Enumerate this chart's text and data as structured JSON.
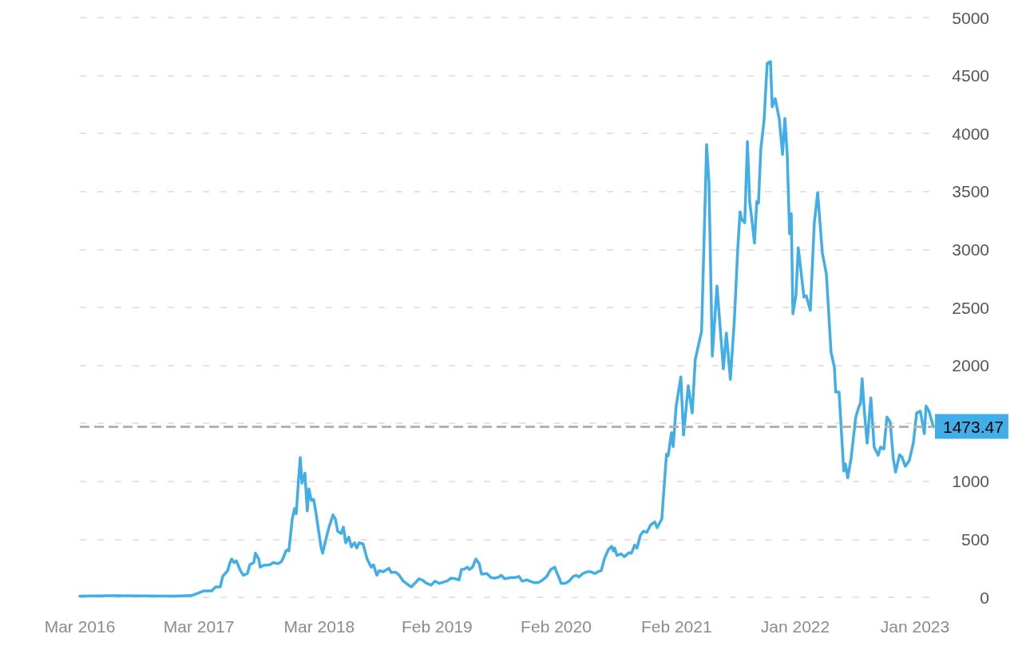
{
  "chart_data": {
    "type": "line",
    "x": [
      "2016-03-15",
      "2016-06-18",
      "2016-09-22",
      "2016-12-26",
      "2017-02-12",
      "2017-03-03",
      "2017-03-20",
      "2017-04-13",
      "2017-04-25",
      "2017-05-09",
      "2017-05-16",
      "2017-05-31",
      "2017-06-07",
      "2017-06-12",
      "2017-06-19",
      "2017-06-26",
      "2017-07-08",
      "2017-07-17",
      "2017-07-29",
      "2017-08-05",
      "2017-08-17",
      "2017-08-22",
      "2017-09-01",
      "2017-09-05",
      "2017-09-15",
      "2017-10-04",
      "2017-10-14",
      "2017-10-28",
      "2017-11-07",
      "2017-11-14",
      "2017-11-21",
      "2017-11-26",
      "2017-11-30",
      "2017-12-10",
      "2017-12-17",
      "2017-12-22",
      "2017-12-29",
      "2018-01-03",
      "2018-01-08",
      "2018-01-17",
      "2018-01-24",
      "2018-01-29",
      "2018-02-05",
      "2018-02-12",
      "2018-02-20",
      "2018-02-27",
      "2018-03-06",
      "2018-03-11",
      "2018-03-18",
      "2018-03-30",
      "2018-04-11",
      "2018-04-18",
      "2018-04-25",
      "2018-05-05",
      "2018-05-12",
      "2018-05-19",
      "2018-05-28",
      "2018-06-05",
      "2018-06-14",
      "2018-06-21",
      "2018-06-28",
      "2018-07-10",
      "2018-07-22",
      "2018-08-03",
      "2018-08-10",
      "2018-08-20",
      "2018-08-27",
      "2018-09-08",
      "2018-09-25",
      "2018-10-02",
      "2018-10-16",
      "2018-10-26",
      "2018-11-07",
      "2018-11-23",
      "2018-12-01",
      "2018-12-13",
      "2018-12-24",
      "2019-01-05",
      "2019-01-13",
      "2019-01-29",
      "2019-02-10",
      "2019-02-22",
      "2019-03-06",
      "2019-03-18",
      "2019-03-30",
      "2019-04-11",
      "2019-04-23",
      "2019-04-30",
      "2019-05-10",
      "2019-05-17",
      "2019-05-24",
      "2019-06-02",
      "2019-06-12",
      "2019-06-22",
      "2019-06-29",
      "2019-07-15",
      "2019-07-27",
      "2019-08-08",
      "2019-08-20",
      "2019-08-27",
      "2019-09-06",
      "2019-09-25",
      "2019-10-07",
      "2019-10-19",
      "2019-10-28",
      "2019-11-12",
      "2019-11-24",
      "2019-12-06",
      "2019-12-18",
      "2019-12-29",
      "2020-01-10",
      "2020-01-22",
      "2020-02-03",
      "2020-02-10",
      "2020-02-15",
      "2020-02-22",
      "2020-03-05",
      "2020-03-17",
      "2020-03-29",
      "2020-04-08",
      "2020-04-15",
      "2020-04-27",
      "2020-05-09",
      "2020-05-21",
      "2020-06-02",
      "2020-06-14",
      "2020-06-21",
      "2020-06-30",
      "2020-07-12",
      "2020-07-22",
      "2020-07-27",
      "2020-07-31",
      "2020-08-07",
      "2020-08-19",
      "2020-08-29",
      "2020-09-12",
      "2020-09-19",
      "2020-09-29",
      "2020-10-06",
      "2020-10-16",
      "2020-10-25",
      "2020-11-04",
      "2020-11-16",
      "2020-11-28",
      "2020-12-05",
      "2020-12-19",
      "2021-01-02",
      "2021-01-07",
      "2021-01-17",
      "2021-01-22",
      "2021-01-31",
      "2021-02-14",
      "2021-02-22",
      "2021-03-08",
      "2021-03-20",
      "2021-03-29",
      "2021-04-17",
      "2021-05-02",
      "2021-05-09",
      "2021-05-19",
      "2021-06-02",
      "2021-06-21",
      "2021-06-30",
      "2021-07-12",
      "2021-07-24",
      "2021-08-03",
      "2021-08-10",
      "2021-08-15",
      "2021-08-24",
      "2021-09-01",
      "2021-09-08",
      "2021-09-12",
      "2021-09-22",
      "2021-09-29",
      "2021-10-04",
      "2021-10-11",
      "2021-10-21",
      "2021-10-30",
      "2021-11-09",
      "2021-11-14",
      "2021-11-23",
      "2021-12-05",
      "2021-12-15",
      "2021-12-22",
      "2021-12-29",
      "2022-01-05",
      "2022-01-10",
      "2022-01-15",
      "2022-01-24",
      "2022-01-31",
      "2022-02-17",
      "2022-02-24",
      "2022-03-08",
      "2022-03-20",
      "2022-03-30",
      "2022-04-13",
      "2022-04-25",
      "2022-05-09",
      "2022-05-19",
      "2022-05-23",
      "2022-06-02",
      "2022-06-16",
      "2022-06-21",
      "2022-06-28",
      "2022-07-08",
      "2022-07-22",
      "2022-08-01",
      "2022-08-05",
      "2022-08-10",
      "2022-08-17",
      "2022-08-25",
      "2022-09-05",
      "2022-09-15",
      "2022-09-27",
      "2022-10-04",
      "2022-10-14",
      "2022-10-23",
      "2022-11-02",
      "2022-11-11",
      "2022-11-18",
      "2022-11-30",
      "2022-12-07",
      "2022-12-17",
      "2022-12-29",
      "2023-01-10",
      "2023-01-20",
      "2023-01-31",
      "2023-02-12",
      "2023-02-17",
      "2023-02-26",
      "2023-03-11"
    ],
    "series": [
      {
        "color": "#41aee8",
        "values": [
          10,
          13,
          12,
          10,
          15,
          35,
          55,
          55,
          90,
          90,
          180,
          230,
          300,
          330,
          300,
          315,
          230,
          190,
          205,
          280,
          300,
          380,
          330,
          260,
          275,
          280,
          300,
          290,
          305,
          345,
          400,
          410,
          400,
          675,
          765,
          720,
          1020,
          1205,
          985,
          1070,
          745,
          935,
          835,
          845,
          710,
          570,
          435,
          380,
          470,
          605,
          710,
          675,
          570,
          550,
          605,
          470,
          520,
          435,
          470,
          425,
          470,
          460,
          330,
          260,
          280,
          190,
          230,
          220,
          250,
          215,
          215,
          190,
          140,
          105,
          90,
          125,
          160,
          145,
          125,
          105,
          140,
          120,
          130,
          140,
          165,
          160,
          150,
          240,
          245,
          260,
          240,
          260,
          330,
          290,
          200,
          205,
          170,
          165,
          175,
          190,
          160,
          170,
          170,
          180,
          140,
          150,
          135,
          125,
          130,
          150,
          180,
          240,
          260,
          205,
          175,
          120,
          120,
          140,
          180,
          190,
          175,
          205,
          220,
          220,
          205,
          225,
          230,
          330,
          410,
          440,
          400,
          425,
          360,
          375,
          350,
          385,
          380,
          450,
          425,
          535,
          570,
          560,
          625,
          650,
          600,
          675,
          1235,
          1220,
          1420,
          1300,
          1650,
          1900,
          1400,
          1825,
          1590,
          2050,
          2295,
          3905,
          3575,
          2080,
          2685,
          1970,
          2280,
          1880,
          2395,
          3000,
          3325,
          3260,
          3230,
          3930,
          3400,
          3315,
          3055,
          3415,
          3400,
          3865,
          4120,
          4605,
          4620,
          4230,
          4300,
          4130,
          3820,
          4130,
          3820,
          3135,
          3310,
          2445,
          2605,
          3015,
          2590,
          2600,
          2475,
          3230,
          3490,
          2970,
          2790,
          2115,
          1985,
          1770,
          1770,
          1090,
          1150,
          1030,
          1200,
          1555,
          1650,
          1670,
          1885,
          1590,
          1330,
          1720,
          1295,
          1225,
          1295,
          1280,
          1555,
          1510,
          1200,
          1080,
          1230,
          1210,
          1130,
          1180,
          1330,
          1590,
          1605,
          1410,
          1650,
          1605,
          1470
        ]
      }
    ],
    "xlim": [
      "2016-03-15",
      "2023-03-11"
    ],
    "xticks": [
      {
        "value": "2016-03-15",
        "label": "Mar 2016"
      },
      {
        "value": "2017-03-06",
        "label": "Mar 2017"
      },
      {
        "value": "2018-03-01",
        "label": "Mar 2018"
      },
      {
        "value": "2019-02-16",
        "label": "Feb 2019"
      },
      {
        "value": "2020-02-07",
        "label": "Feb 2020"
      },
      {
        "value": "2021-02-01",
        "label": "Feb 2021"
      },
      {
        "value": "2022-01-22",
        "label": "Jan 2022"
      },
      {
        "value": "2023-01-15",
        "label": "Jan 2023"
      }
    ],
    "ylim": [
      0,
      5000
    ],
    "yticks": [
      0,
      500,
      1000,
      {
        "value": 1500,
        "label": null
      },
      2000,
      2500,
      3000,
      3500,
      4000,
      4500,
      5000
    ],
    "ref_lines": [
      {
        "axis": "y",
        "value": 1473.47,
        "label": "1473.47",
        "color": "#b3b3b3",
        "line_style": "dashed"
      }
    ],
    "grid": "y",
    "marker": "none",
    "line_style": "solid"
  }
}
